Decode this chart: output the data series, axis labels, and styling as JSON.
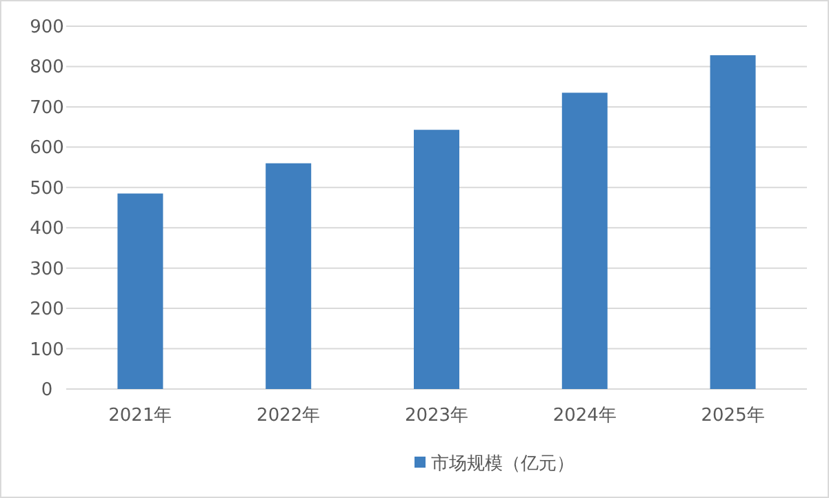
{
  "chart_data": {
    "type": "bar",
    "categories": [
      "2021年",
      "2022年",
      "2023年",
      "2024年",
      "2025年"
    ],
    "series": [
      {
        "name": "市场规模（亿元）",
        "color": "#3f7fbf",
        "values": [
          485,
          560,
          643,
          735,
          828
        ]
      }
    ],
    "ylim": [
      0,
      900
    ],
    "yticks": [
      0,
      100,
      200,
      300,
      400,
      500,
      600,
      700,
      800,
      900
    ],
    "grid": "y",
    "legend": "bottom"
  }
}
